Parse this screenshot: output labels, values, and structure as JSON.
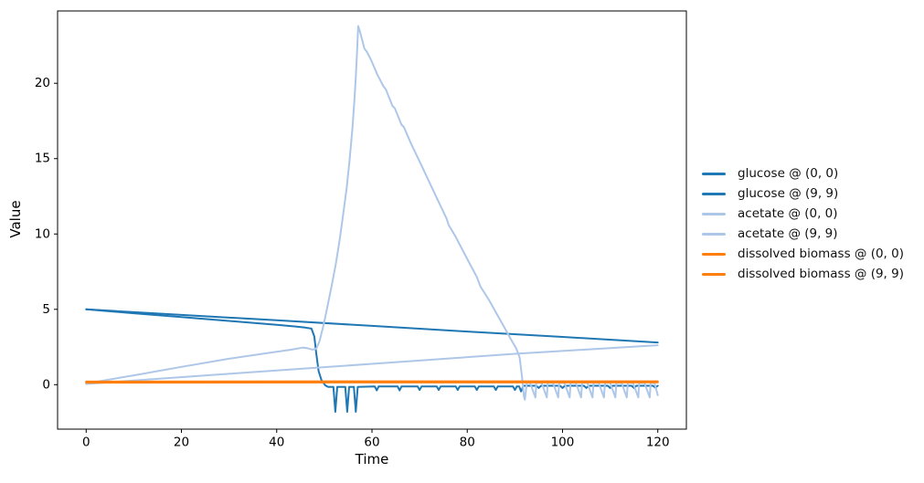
{
  "figure": {
    "title": "",
    "background": "#ffffff",
    "frame_color": "#000000"
  },
  "chart_data": {
    "type": "line",
    "title": "",
    "xlabel": "Time",
    "ylabel": "Value",
    "xlim": [
      -6,
      126
    ],
    "ylim": [
      -2.95,
      24.8
    ],
    "xticks": [
      0,
      20,
      40,
      60,
      80,
      100,
      120
    ],
    "yticks": [
      0,
      5,
      10,
      15,
      20
    ],
    "grid": false,
    "legend_position": "outside-right",
    "colors": {
      "glucose": "#1f77b4",
      "acetate": "#aec7e8",
      "dissolved_biomass": "#ff7f0e"
    },
    "series": [
      {
        "name": "glucose @ (0, 0)",
        "color": "#1f77b4",
        "width": 2,
        "points": [
          [
            0,
            5.0
          ],
          [
            20,
            4.63
          ],
          [
            40,
            4.27
          ],
          [
            60,
            3.9
          ],
          [
            80,
            3.53
          ],
          [
            100,
            3.17
          ],
          [
            120,
            2.8
          ]
        ]
      },
      {
        "name": "glucose @ (9, 9)",
        "color": "#1f77b4",
        "width": 2,
        "points": [
          [
            0,
            5.0
          ],
          [
            10,
            4.74
          ],
          [
            20,
            4.49
          ],
          [
            30,
            4.23
          ],
          [
            40,
            3.97
          ],
          [
            44,
            3.86
          ],
          [
            46,
            3.79
          ],
          [
            47.3,
            3.72
          ],
          [
            47.9,
            3.2
          ],
          [
            48.3,
            2.1
          ],
          [
            48.8,
            0.9
          ],
          [
            49.4,
            0.3
          ],
          [
            50.2,
            -0.05
          ],
          [
            50.8,
            -0.15
          ],
          [
            51.9,
            -0.15
          ],
          [
            52.3,
            -1.8
          ],
          [
            52.7,
            -0.15
          ],
          [
            54.4,
            -0.15
          ],
          [
            54.8,
            -1.8
          ],
          [
            55.2,
            -0.15
          ],
          [
            56.2,
            -0.15
          ],
          [
            56.6,
            -1.8
          ],
          [
            57,
            -0.15
          ],
          [
            60.6,
            -0.12
          ],
          [
            61,
            -0.38
          ],
          [
            61.4,
            -0.12
          ],
          [
            65.4,
            -0.12
          ],
          [
            65.8,
            -0.38
          ],
          [
            66.2,
            -0.12
          ],
          [
            69.6,
            -0.12
          ],
          [
            70,
            -0.35
          ],
          [
            70.4,
            -0.12
          ],
          [
            73.6,
            -0.12
          ],
          [
            74,
            -0.35
          ],
          [
            74.4,
            -0.12
          ],
          [
            77.6,
            -0.12
          ],
          [
            78,
            -0.35
          ],
          [
            78.4,
            -0.12
          ],
          [
            81.6,
            -0.12
          ],
          [
            82,
            -0.35
          ],
          [
            82.4,
            -0.12
          ],
          [
            85.6,
            -0.12
          ],
          [
            86,
            -0.35
          ],
          [
            86.4,
            -0.12
          ],
          [
            89.6,
            -0.12
          ],
          [
            90,
            -0.35
          ],
          [
            90.4,
            -0.12
          ],
          [
            90.9,
            -0.12
          ],
          [
            91.3,
            -0.45
          ],
          [
            91.8,
            -0.07
          ],
          [
            94.5,
            -0.07
          ],
          [
            95,
            -0.22
          ],
          [
            95.5,
            -0.07
          ],
          [
            99.5,
            -0.07
          ],
          [
            100,
            -0.22
          ],
          [
            100.5,
            -0.07
          ],
          [
            104.5,
            -0.07
          ],
          [
            105,
            -0.22
          ],
          [
            105.5,
            -0.07
          ],
          [
            109.5,
            -0.07
          ],
          [
            110,
            -0.22
          ],
          [
            110.5,
            -0.07
          ],
          [
            114.5,
            -0.07
          ],
          [
            115,
            -0.22
          ],
          [
            115.5,
            -0.07
          ],
          [
            119,
            -0.07
          ],
          [
            119.5,
            -0.2
          ],
          [
            120,
            -0.07
          ]
        ]
      },
      {
        "name": "acetate @ (0, 0)",
        "color": "#aec7e8",
        "width": 2,
        "points": [
          [
            0,
            0.05
          ],
          [
            30,
            0.72
          ],
          [
            60,
            1.38
          ],
          [
            90,
            2.05
          ],
          [
            120,
            2.62
          ]
        ]
      },
      {
        "name": "acetate @ (9, 9)",
        "color": "#aec7e8",
        "width": 2,
        "points": [
          [
            0,
            0.08
          ],
          [
            10,
            0.62
          ],
          [
            20,
            1.18
          ],
          [
            30,
            1.72
          ],
          [
            38,
            2.1
          ],
          [
            43,
            2.32
          ],
          [
            45.5,
            2.46
          ],
          [
            46.5,
            2.42
          ],
          [
            47.5,
            2.33
          ],
          [
            48.3,
            2.38
          ],
          [
            49,
            2.9
          ],
          [
            49.8,
            3.9
          ],
          [
            50.6,
            5.1
          ],
          [
            51.5,
            6.5
          ],
          [
            52.4,
            8.0
          ],
          [
            53.2,
            9.6
          ],
          [
            54,
            11.4
          ],
          [
            54.7,
            13.1
          ],
          [
            55.3,
            14.9
          ],
          [
            55.9,
            17.0
          ],
          [
            56.3,
            18.8
          ],
          [
            56.6,
            20.4
          ],
          [
            56.85,
            22.0
          ],
          [
            57.1,
            23.8
          ],
          [
            57.5,
            23.4
          ],
          [
            58,
            22.8
          ],
          [
            58.4,
            22.3
          ],
          [
            58.9,
            22.1
          ],
          [
            59.8,
            21.55
          ],
          [
            60.7,
            20.9
          ],
          [
            61.1,
            20.6
          ],
          [
            62.4,
            19.8
          ],
          [
            62.9,
            19.6
          ],
          [
            64.3,
            18.5
          ],
          [
            64.8,
            18.35
          ],
          [
            66.2,
            17.25
          ],
          [
            66.7,
            17.1
          ],
          [
            68.2,
            16.0
          ],
          [
            69.7,
            15.0
          ],
          [
            71.2,
            14.0
          ],
          [
            72.7,
            13.0
          ],
          [
            74.2,
            12.0
          ],
          [
            75.7,
            11.0
          ],
          [
            76.1,
            10.6
          ],
          [
            77.5,
            9.85
          ],
          [
            79,
            8.95
          ],
          [
            80.5,
            8.05
          ],
          [
            82,
            7.15
          ],
          [
            82.8,
            6.5
          ],
          [
            83.2,
            6.3
          ],
          [
            84.6,
            5.6
          ],
          [
            86.1,
            4.75
          ],
          [
            87.6,
            3.9
          ],
          [
            89.1,
            3.05
          ],
          [
            90.3,
            2.4
          ],
          [
            91,
            1.8
          ],
          [
            91.5,
            0.5
          ],
          [
            91.9,
            -0.8
          ],
          [
            92.1,
            -1.0
          ],
          [
            92.5,
            0.12
          ],
          [
            93.2,
            0.12
          ],
          [
            94.3,
            -0.85
          ],
          [
            94.5,
            0.12
          ],
          [
            95.6,
            0.12
          ],
          [
            96.7,
            -0.85
          ],
          [
            96.9,
            0.12
          ],
          [
            98,
            0.12
          ],
          [
            99.1,
            -0.85
          ],
          [
            99.3,
            0.12
          ],
          [
            100.4,
            0.12
          ],
          [
            101.5,
            -0.85
          ],
          [
            101.7,
            0.12
          ],
          [
            102.8,
            0.12
          ],
          [
            103.9,
            -0.85
          ],
          [
            104.1,
            0.12
          ],
          [
            105.2,
            0.12
          ],
          [
            106.3,
            -0.85
          ],
          [
            106.5,
            0.12
          ],
          [
            107.6,
            0.12
          ],
          [
            108.7,
            -0.85
          ],
          [
            108.9,
            0.12
          ],
          [
            110,
            0.12
          ],
          [
            111.1,
            -0.85
          ],
          [
            111.3,
            0.12
          ],
          [
            112.4,
            0.12
          ],
          [
            113.5,
            -0.85
          ],
          [
            113.7,
            0.12
          ],
          [
            114.8,
            0.12
          ],
          [
            115.9,
            -0.85
          ],
          [
            116.1,
            0.12
          ],
          [
            117.2,
            0.12
          ],
          [
            118.3,
            -0.85
          ],
          [
            118.5,
            0.12
          ],
          [
            119.3,
            0.12
          ],
          [
            120,
            -0.7
          ]
        ]
      },
      {
        "name": "dissolved biomass @ (0, 0)",
        "color": "#ff7f0e",
        "width": 2.2,
        "points": [
          [
            0,
            0.14
          ],
          [
            60,
            0.15
          ],
          [
            120,
            0.16
          ]
        ]
      },
      {
        "name": "dissolved biomass @ (9, 9)",
        "color": "#ff7f0e",
        "width": 2.2,
        "points": [
          [
            0,
            0.2
          ],
          [
            60,
            0.22
          ],
          [
            120,
            0.22
          ]
        ]
      }
    ]
  },
  "legend": {
    "items": [
      "glucose @ (0, 0)",
      "glucose @ (9, 9)",
      "acetate @ (0, 0)",
      "acetate @ (9, 9)",
      "dissolved biomass @ (0, 0)",
      "dissolved biomass @ (9, 9)"
    ]
  }
}
